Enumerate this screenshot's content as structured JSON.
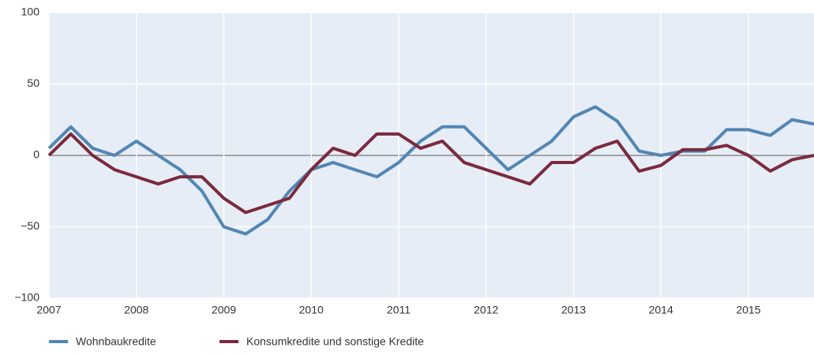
{
  "chart_data": {
    "type": "line",
    "x": [
      2007,
      2007.25,
      2007.5,
      2007.75,
      2008,
      2008.25,
      2008.5,
      2008.75,
      2009,
      2009.25,
      2009.5,
      2009.75,
      2010,
      2010.25,
      2010.5,
      2010.75,
      2011,
      2011.25,
      2011.5,
      2011.75,
      2012,
      2012.25,
      2012.5,
      2012.75,
      2013,
      2013.25,
      2013.5,
      2013.75,
      2014,
      2014.25,
      2014.5,
      2014.75,
      2015,
      2015.25,
      2015.5,
      2015.75
    ],
    "series": [
      {
        "name": "Wohnbaukredite",
        "color": "#5286b4",
        "values": [
          5,
          20,
          5,
          0,
          10,
          0,
          -10,
          -25,
          -50,
          -55,
          -45,
          -25,
          -10,
          -5,
          -10,
          -15,
          -5,
          10,
          20,
          20,
          5,
          -10,
          0,
          10,
          27,
          34,
          24,
          3,
          0,
          3,
          3,
          18,
          18,
          14,
          25,
          22
        ]
      },
      {
        "name": "Konsumkredite und sonstige Kredite",
        "color": "#7b2a3e",
        "values": [
          0,
          15,
          0,
          -10,
          -15,
          -20,
          -15,
          -15,
          -30,
          -40,
          -35,
          -30,
          -10,
          5,
          0,
          15,
          15,
          5,
          10,
          -5,
          -10,
          -15,
          -20,
          -5,
          -5,
          5,
          10,
          -11,
          -7,
          4,
          4,
          7,
          0,
          -11,
          -3,
          0
        ]
      }
    ],
    "xlim": [
      2007,
      2015.75
    ],
    "xticks": [
      2007,
      2008,
      2009,
      2010,
      2011,
      2012,
      2013,
      2014,
      2015
    ],
    "ylim": [
      -100,
      100
    ],
    "yticks": [
      {
        "value": -100,
        "label": "−100"
      },
      {
        "value": -50,
        "label": "−50"
      },
      0,
      50,
      100
    ],
    "grid": true
  }
}
